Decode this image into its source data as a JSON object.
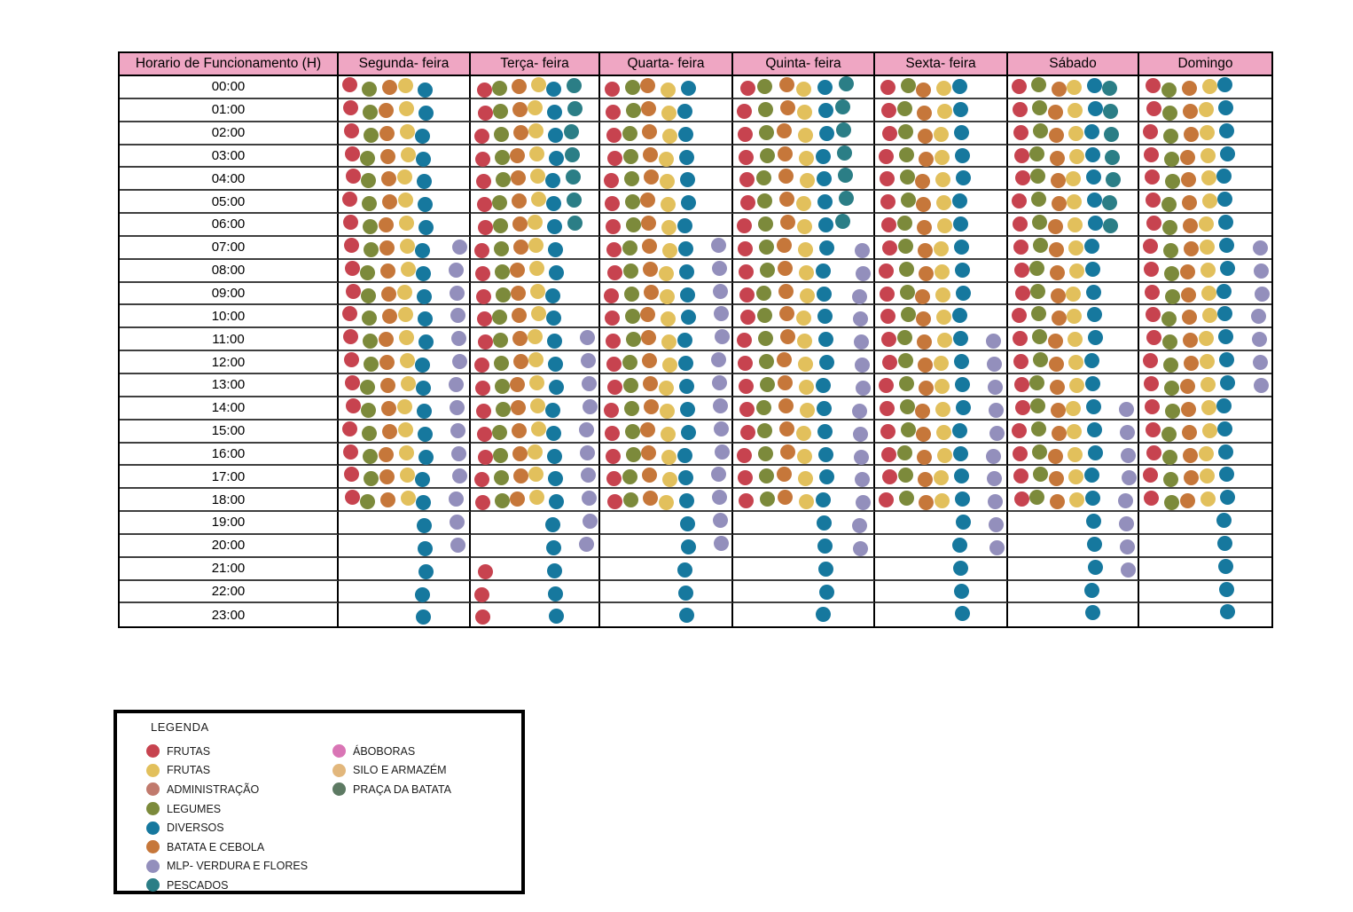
{
  "table": {
    "hour_header": "Horario de Funcionamento (H)",
    "header_bg": "#EFA6C3"
  },
  "chart_data": {
    "type": "table",
    "title": "Horario de Funcionamento (H)",
    "columns": [
      "Segunda- feira",
      "Terça- feira",
      "Quarta- feira",
      "Quinta- feira",
      "Sexta- feira",
      "Sábado",
      "Domingo"
    ],
    "row_labels": [
      "00:00",
      "01:00",
      "02:00",
      "03:00",
      "04:00",
      "05:00",
      "06:00",
      "07:00",
      "08:00",
      "09:00",
      "10:00",
      "11:00",
      "12:00",
      "13:00",
      "14:00",
      "15:00",
      "16:00",
      "17:00",
      "18:00",
      "19:00",
      "20:00",
      "21:00",
      "22:00",
      "23:00"
    ],
    "sets": {
      "A": [
        "fr",
        "lg",
        "bc",
        "fy",
        "dv"
      ],
      "B": [
        "fr",
        "lg",
        "bc",
        "fy",
        "dv",
        "ps"
      ],
      "C": [
        "fr",
        "lg",
        "bc",
        "fy",
        "dv",
        "mv"
      ],
      "D": [
        "dv"
      ],
      "E": [
        "dv",
        "mv"
      ],
      "F": [
        "fr",
        "dv"
      ]
    },
    "cells": [
      [
        "A",
        "B",
        "A",
        "B",
        "A",
        "B",
        "A"
      ],
      [
        "A",
        "B",
        "A",
        "B",
        "A",
        "B",
        "A"
      ],
      [
        "A",
        "B",
        "A",
        "B",
        "A",
        "B",
        "A"
      ],
      [
        "A",
        "B",
        "A",
        "B",
        "A",
        "B",
        "A"
      ],
      [
        "A",
        "B",
        "A",
        "B",
        "A",
        "B",
        "A"
      ],
      [
        "A",
        "B",
        "A",
        "B",
        "A",
        "B",
        "A"
      ],
      [
        "A",
        "B",
        "A",
        "B",
        "A",
        "B",
        "A"
      ],
      [
        "C",
        "A",
        "C",
        "C",
        "A",
        "A",
        "C"
      ],
      [
        "C",
        "A",
        "C",
        "C",
        "A",
        "A",
        "C"
      ],
      [
        "C",
        "A",
        "C",
        "C",
        "A",
        "A",
        "C"
      ],
      [
        "C",
        "A",
        "C",
        "C",
        "A",
        "A",
        "C"
      ],
      [
        "C",
        "C",
        "C",
        "C",
        "C",
        "A",
        "C"
      ],
      [
        "C",
        "C",
        "C",
        "C",
        "C",
        "A",
        "C"
      ],
      [
        "C",
        "C",
        "C",
        "C",
        "C",
        "A",
        "C"
      ],
      [
        "C",
        "C",
        "C",
        "C",
        "C",
        "C",
        "A"
      ],
      [
        "C",
        "C",
        "C",
        "C",
        "C",
        "C",
        "A"
      ],
      [
        "C",
        "C",
        "C",
        "C",
        "C",
        "C",
        "A"
      ],
      [
        "C",
        "C",
        "C",
        "C",
        "C",
        "C",
        "A"
      ],
      [
        "C",
        "C",
        "C",
        "C",
        "C",
        "C",
        "A"
      ],
      [
        "E",
        "E",
        "E",
        "E",
        "E",
        "E",
        "D"
      ],
      [
        "E",
        "E",
        "E",
        "E",
        "E",
        "E",
        "D"
      ],
      [
        "D",
        "F",
        "D",
        "D",
        "D",
        "E",
        "D"
      ],
      [
        "D",
        "F",
        "D",
        "D",
        "D",
        "D",
        "D"
      ],
      [
        "D",
        "F",
        "D",
        "D",
        "D",
        "D",
        "D"
      ]
    ]
  },
  "patterns": {
    "A": [
      [
        "fr",
        0
      ],
      [
        "lg",
        1
      ],
      [
        "bc",
        2
      ],
      [
        "fy",
        3
      ],
      [
        "dv",
        4
      ]
    ],
    "B": [
      [
        "fr",
        0
      ],
      [
        "lg",
        1
      ],
      [
        "bc",
        2
      ],
      [
        "fy",
        3
      ],
      [
        "dv",
        4
      ],
      [
        "ps",
        5
      ]
    ],
    "C": [
      [
        "fr",
        0
      ],
      [
        "lg",
        1
      ],
      [
        "bc",
        2
      ],
      [
        "fy",
        3
      ],
      [
        "dv",
        4
      ],
      [
        "mv",
        6
      ]
    ],
    "D": [
      [
        "dv",
        4
      ]
    ],
    "E": [
      [
        "dv",
        4
      ],
      [
        "mv",
        6
      ]
    ],
    "F": [
      [
        "fr",
        0
      ],
      [
        "dv",
        4
      ]
    ]
  },
  "colors": {
    "fr": "#C7434F",
    "fy": "#E2C05C",
    "ad": "#C17A6D",
    "lg": "#7C8A3B",
    "dv": "#16789E",
    "bc": "#C6773A",
    "mv": "#938FBC",
    "ps": "#2B7E86",
    "ab": "#D975B5",
    "sa": "#E2B77C",
    "pb": "#5D7A63"
  },
  "sector_names": {
    "fr": "FRUTAS",
    "fy": "FRUTAS",
    "ad": "ADMINISTRAÇÃO",
    "lg": "LEGUMES",
    "dv": "DIVERSOS",
    "bc": "BATATA E CEBOLA",
    "mv": "MLP- VERDURA E FLORES",
    "ps": "PESCADOS",
    "ab": "ÁBOBORAS",
    "sa": "SILO E ARMAZÉM",
    "pb": "PRAÇA DA BATATA"
  },
  "legend": {
    "title": "LEGENDA",
    "left": [
      "fr",
      "fy",
      "ad",
      "lg",
      "dv",
      "bc",
      "mv",
      "ps"
    ],
    "right": [
      "ab",
      "sa",
      "pb"
    ]
  }
}
